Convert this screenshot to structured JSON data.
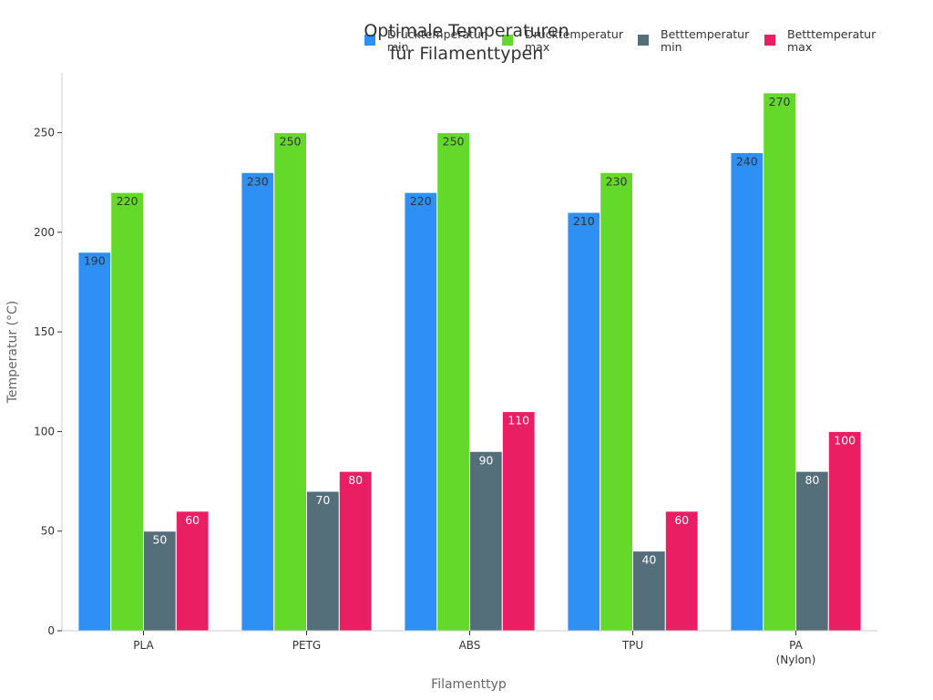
{
  "chart_data": {
    "type": "bar",
    "title": [
      "Optimale Temperaturen",
      "für Filamenttypen"
    ],
    "xlabel": "Filamenttyp",
    "ylabel": "Temperatur (°C)",
    "ylim": [
      0,
      280
    ],
    "yticks": [
      0,
      50,
      100,
      150,
      200,
      250
    ],
    "grid": false,
    "legend_position": "top-right",
    "categories": [
      [
        "PLA"
      ],
      [
        "PETG"
      ],
      [
        "ABS"
      ],
      [
        "TPU"
      ],
      [
        "PA",
        "(Nylon)"
      ]
    ],
    "series": [
      {
        "name": [
          "Drucktemperatur",
          "min"
        ],
        "color": "#2E8FF5",
        "label_color": "#333333",
        "values": [
          190,
          230,
          220,
          210,
          240
        ]
      },
      {
        "name": [
          "Drucktemperatur",
          "max"
        ],
        "color": "#64D929",
        "label_color": "#333333",
        "values": [
          220,
          250,
          250,
          230,
          270
        ]
      },
      {
        "name": [
          "Betttemperatur",
          "min"
        ],
        "color": "#546E7A",
        "label_color": "#ffffff",
        "values": [
          50,
          70,
          90,
          40,
          80
        ]
      },
      {
        "name": [
          "Betttemperatur",
          "max"
        ],
        "color": "#E91E63",
        "label_color": "#ffffff",
        "values": [
          60,
          80,
          110,
          60,
          100
        ]
      }
    ]
  }
}
